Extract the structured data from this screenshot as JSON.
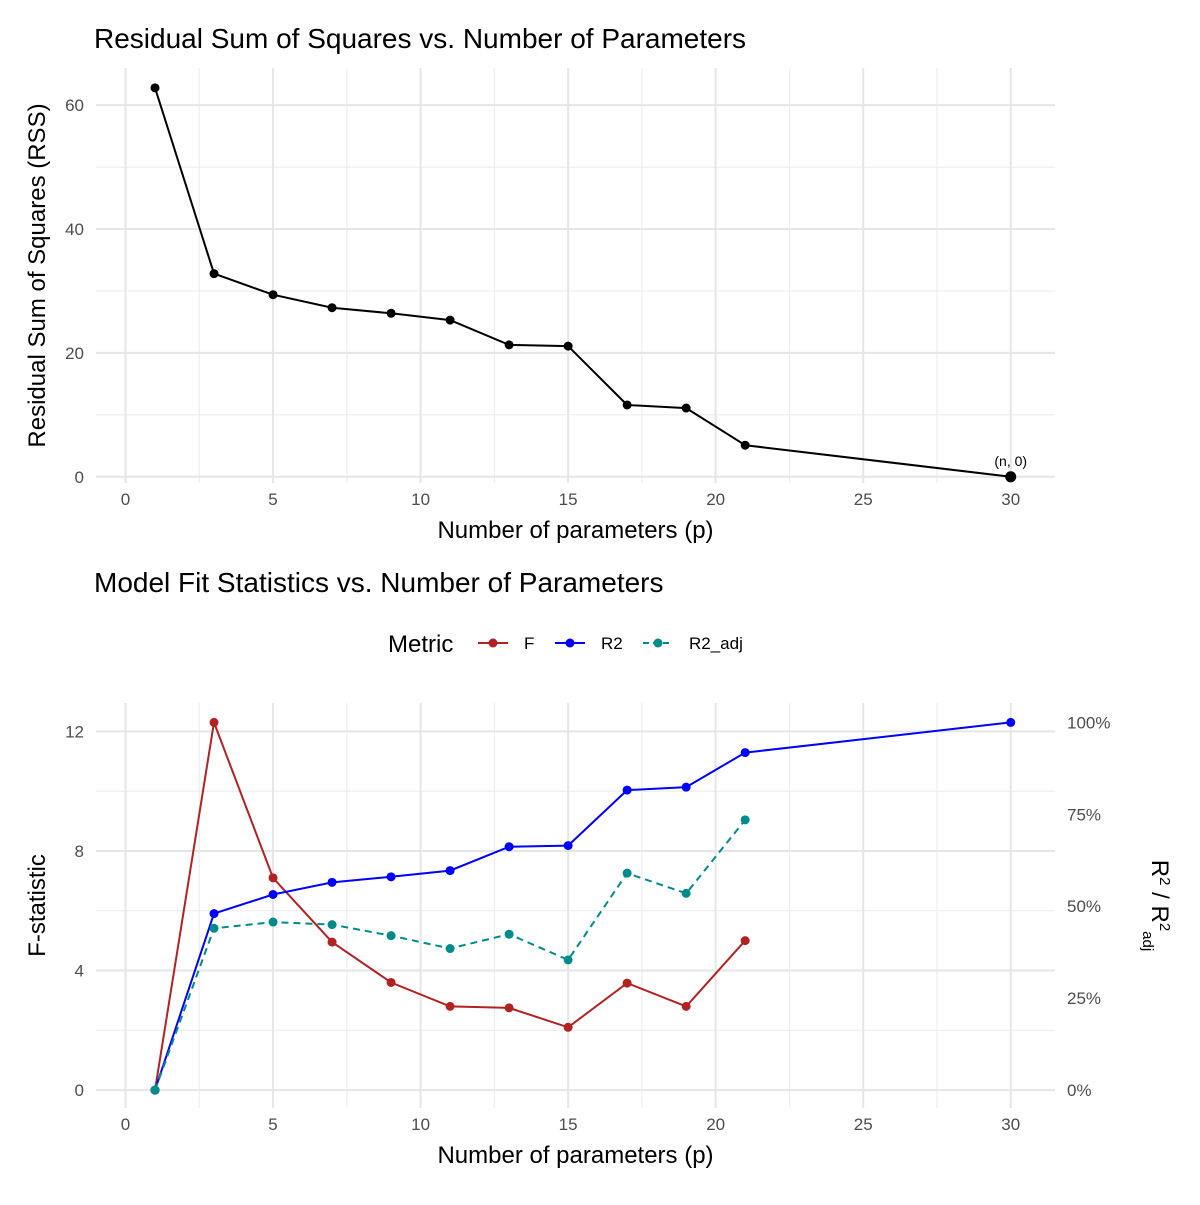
{
  "chart_data": [
    {
      "type": "line",
      "title": "Residual Sum of Squares vs. Number of Parameters",
      "xlabel": "Number of parameters (p)",
      "ylabel": "Residual Sum of Squares (RSS)",
      "xlim": [
        -1,
        31.5
      ],
      "ylim": [
        -1,
        66
      ],
      "xticks": [
        0,
        5,
        10,
        15,
        20,
        25,
        30
      ],
      "yticks": [
        0,
        20,
        40,
        60
      ],
      "grid": true,
      "series": [
        {
          "color": "#000000",
          "x": [
            1,
            3,
            5,
            7,
            9,
            11,
            13,
            15,
            17,
            19,
            21,
            30
          ],
          "y": [
            62.8,
            32.8,
            29.4,
            27.3,
            26.4,
            25.3,
            21.3,
            21.1,
            11.6,
            11.1,
            5.1,
            0
          ]
        }
      ],
      "annotations": [
        {
          "x": 30,
          "y": 0,
          "text": "(n, 0)"
        }
      ]
    },
    {
      "type": "line",
      "title": "Model Fit Statistics vs. Number of Parameters",
      "xlabel": "Number of parameters (p)",
      "ylabel": "F-statistic",
      "ylabel_right": {
        "main": "R",
        "sup1": "2",
        "sep": " / R",
        "sup2": "2",
        "sub": "adj"
      },
      "xlim": [
        -1,
        31.5
      ],
      "ylim": [
        -0.6,
        12.95
      ],
      "xticks": [
        0,
        5,
        10,
        15,
        20,
        25,
        30
      ],
      "yticks": [
        0,
        4,
        8,
        12
      ],
      "right_axis": {
        "ticks": [
          0,
          0.25,
          0.5,
          0.75,
          1.0
        ],
        "labels": [
          "0%",
          "25%",
          "50%",
          "75%",
          "100%"
        ],
        "scale_max_left": 12.3
      },
      "legend": {
        "title": "Metric",
        "position": "top"
      },
      "grid": true,
      "series": [
        {
          "name": "F",
          "axis": "left",
          "color": "#b22222",
          "dash": false,
          "x": [
            1,
            3,
            5,
            7,
            9,
            11,
            13,
            15,
            17,
            19,
            21
          ],
          "y": [
            0,
            12.3,
            7.1,
            4.95,
            3.6,
            2.8,
            2.75,
            2.1,
            3.58,
            2.8,
            5.0
          ]
        },
        {
          "name": "R2",
          "axis": "right",
          "color": "#0000ff",
          "dash": false,
          "x": [
            1,
            3,
            5,
            7,
            9,
            11,
            13,
            15,
            17,
            19,
            21,
            30
          ],
          "y": [
            0,
            0.48,
            0.532,
            0.565,
            0.58,
            0.597,
            0.662,
            0.665,
            0.816,
            0.824,
            0.918,
            1.0
          ]
        },
        {
          "name": "R2_adj",
          "axis": "right",
          "color": "#008b8b",
          "dash": true,
          "x": [
            1,
            3,
            5,
            7,
            9,
            11,
            13,
            15,
            17,
            19,
            21
          ],
          "y": [
            0,
            0.44,
            0.457,
            0.45,
            0.42,
            0.385,
            0.424,
            0.354,
            0.59,
            0.535,
            0.735
          ]
        }
      ]
    }
  ]
}
